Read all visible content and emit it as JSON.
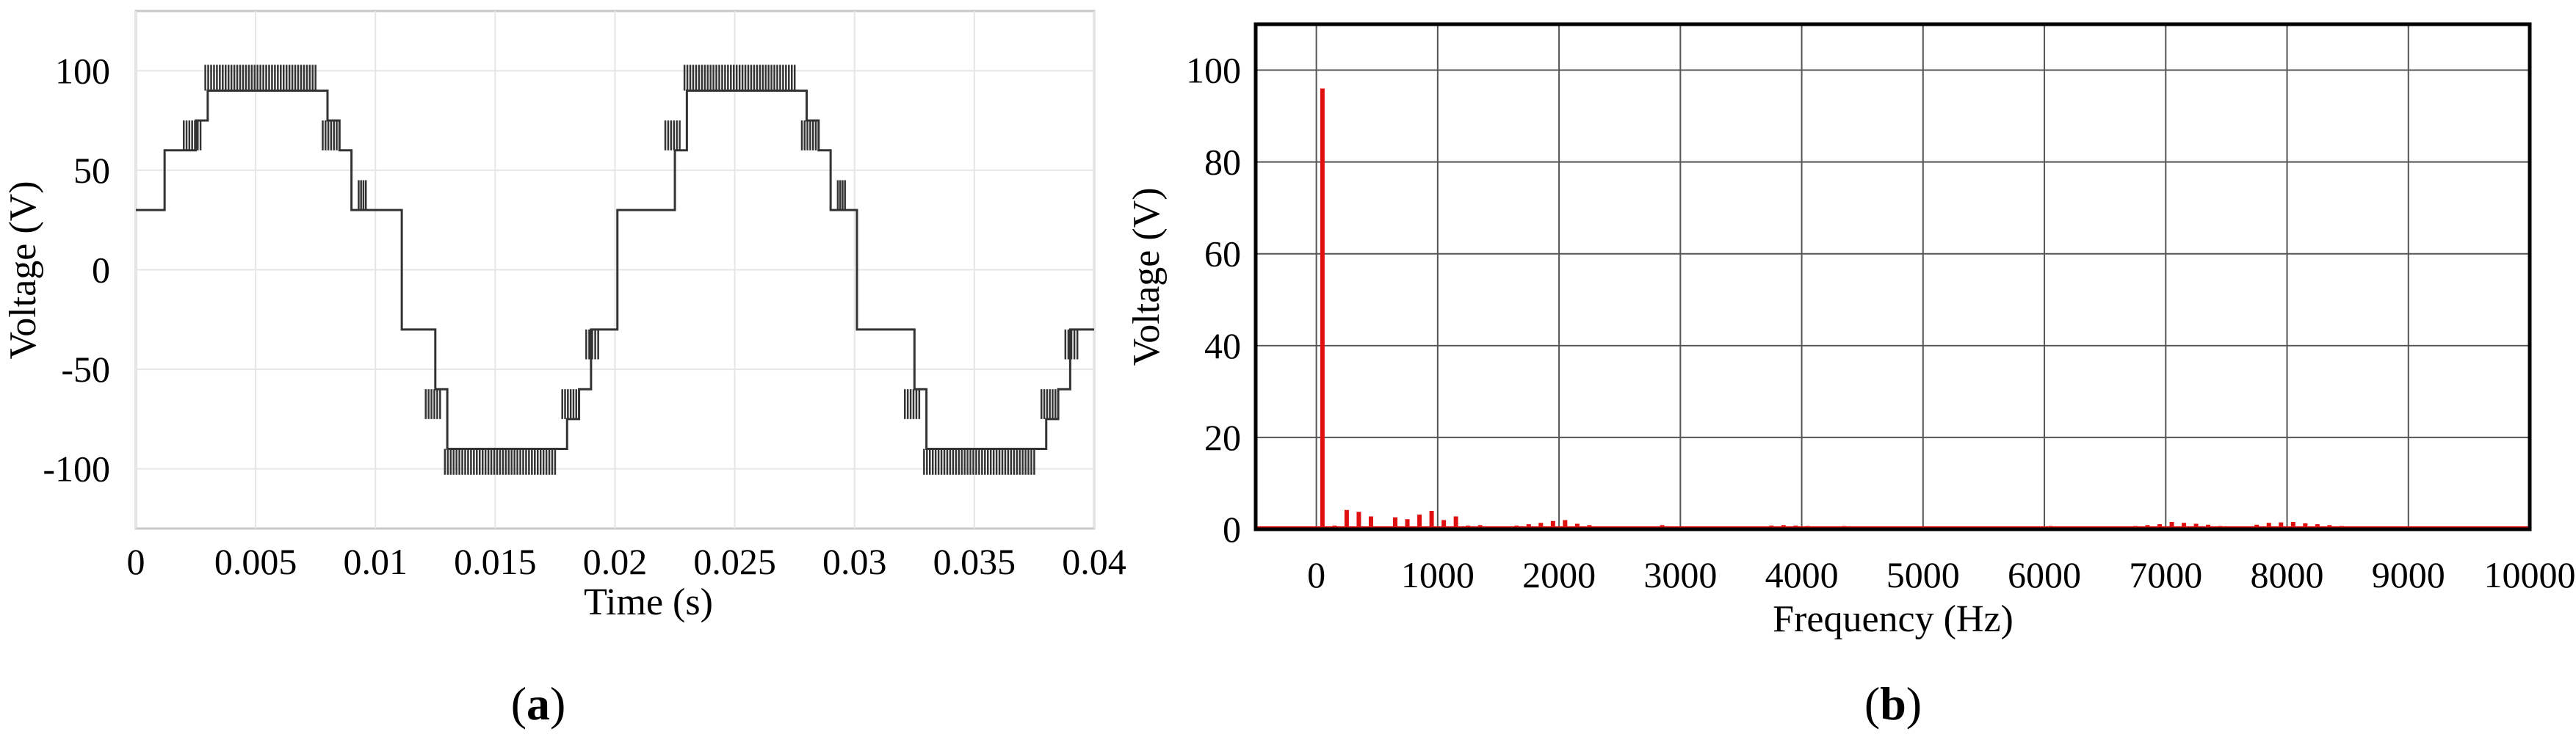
{
  "chart_data": [
    {
      "panel": "a",
      "type": "line",
      "title": "",
      "xlabel": "Time (s)",
      "ylabel": "Voltage (V)",
      "xlim": [
        0,
        0.04
      ],
      "ylim": [
        -130,
        130
      ],
      "x_ticks": [
        0,
        0.005,
        0.01,
        0.015,
        0.02,
        0.025,
        0.03,
        0.035,
        0.04
      ],
      "x_tick_labels": [
        "0",
        "0.005",
        "0.01",
        "0.015",
        "0.02",
        "0.025",
        "0.03",
        "0.035",
        "0.04"
      ],
      "y_ticks": [
        100,
        50,
        0,
        -50,
        -100
      ],
      "y_tick_labels": [
        "100",
        "50",
        "0",
        "-50",
        "-100"
      ],
      "grid": true,
      "color": "#333333",
      "series": [
        {
          "signal": "7-level stepped voltage with PWM switching at step transitions",
          "fundamental_frequency_hz": 50,
          "levels_v": [
            -103,
            -90,
            -75,
            -60,
            -30,
            0,
            30,
            60,
            75,
            90,
            103
          ],
          "x": [
            0.0,
            0.001,
            0.0012,
            0.002,
            0.0025,
            0.003,
            0.0075,
            0.008,
            0.0085,
            0.009,
            0.0101,
            0.0111,
            0.0125,
            0.013,
            0.0175,
            0.018,
            0.0185,
            0.019,
            0.0201,
            0.0211,
            0.0225,
            0.023,
            0.0275,
            0.028,
            0.0285,
            0.029,
            0.0301,
            0.0311,
            0.0325,
            0.033,
            0.0375,
            0.038,
            0.0385,
            0.039,
            0.04
          ],
          "y": [
            30,
            30,
            60,
            60,
            75,
            90,
            90,
            75,
            60,
            30,
            30,
            -30,
            -60,
            -90,
            -90,
            -75,
            -60,
            -30,
            30,
            30,
            60,
            90,
            90,
            75,
            60,
            30,
            -30,
            -30,
            -60,
            -90,
            -90,
            -75,
            -60,
            -30,
            -30
          ]
        }
      ]
    },
    {
      "panel": "b",
      "type": "bar",
      "title": "",
      "xlabel": "Frequency (Hz)",
      "ylabel": "Voltage (V)",
      "xlim": [
        -500,
        10000
      ],
      "ylim": [
        0,
        110
      ],
      "x_ticks": [
        0,
        1000,
        2000,
        3000,
        4000,
        5000,
        6000,
        7000,
        8000,
        9000,
        10000
      ],
      "x_tick_labels": [
        "0",
        "1000",
        "2000",
        "3000",
        "4000",
        "5000",
        "6000",
        "7000",
        "8000",
        "9000",
        "10000"
      ],
      "y_ticks": [
        0,
        20,
        40,
        60,
        80,
        100
      ],
      "y_tick_labels": [
        "0",
        "20",
        "40",
        "60",
        "80",
        "100"
      ],
      "grid": true,
      "color": "#e01010",
      "series": [
        {
          "x": [
            50,
            150,
            250,
            350,
            450,
            650,
            750,
            850,
            950,
            1050,
            1150,
            1250,
            1350,
            1550,
            1650,
            1750,
            1850,
            1950,
            2050,
            2150,
            2250,
            2550,
            2650,
            2850,
            2950,
            3050,
            3350,
            3550,
            3750,
            3850,
            3950,
            4050,
            4150,
            4350,
            4550,
            4750,
            4950,
            5250,
            5550,
            5850,
            6050,
            6150,
            6350,
            6550,
            6650,
            6750,
            6850,
            6950,
            7050,
            7150,
            7250,
            7350,
            7450,
            7650,
            7750,
            7850,
            7950,
            8050,
            8150,
            8250,
            8350,
            8450,
            8550,
            8650,
            8850,
            9150,
            9450,
            9750,
            9950
          ],
          "y": [
            96,
            0.8,
            4.2,
            3.8,
            2.8,
            2.6,
            2.2,
            3.2,
            4.0,
            2.0,
            2.8,
            0.8,
            0.9,
            0.6,
            0.8,
            1.1,
            1.4,
            1.8,
            2.0,
            1.2,
            0.9,
            0.6,
            0.5,
            0.9,
            0.6,
            0.5,
            0.5,
            0.4,
            0.8,
            0.9,
            0.8,
            0.7,
            0.6,
            0.7,
            0.5,
            0.6,
            0.5,
            0.5,
            0.4,
            0.6,
            0.7,
            0.5,
            0.4,
            0.5,
            0.6,
            0.7,
            0.9,
            1.1,
            1.6,
            1.4,
            1.2,
            1.0,
            0.7,
            0.6,
            1.0,
            1.4,
            1.5,
            1.6,
            1.3,
            1.1,
            0.9,
            0.7,
            0.6,
            0.5,
            0.4,
            0.4,
            0.4,
            0.4,
            0.3
          ]
        }
      ]
    }
  ],
  "panels": {
    "a": {
      "label_open": "(",
      "label_letter": "a",
      "label_close": ")"
    },
    "b": {
      "label_open": "(",
      "label_letter": "b",
      "label_close": ")"
    }
  }
}
